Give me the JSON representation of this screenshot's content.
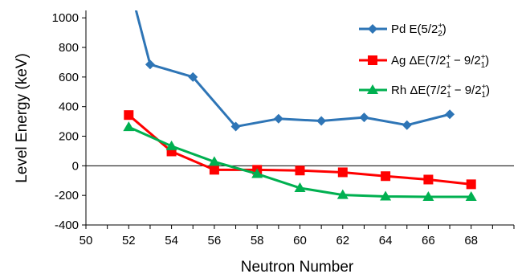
{
  "chart_data": {
    "type": "line",
    "title": "",
    "xlabel": "Neutron Number",
    "ylabel": "Level Energy (keV)",
    "xlim": [
      50,
      70
    ],
    "ylim": [
      -400,
      1050
    ],
    "xticks": [
      50,
      52,
      54,
      56,
      58,
      60,
      62,
      64,
      66,
      68
    ],
    "yticks": [
      -400,
      -200,
      0,
      200,
      400,
      600,
      800,
      1000
    ],
    "grid": false,
    "legend_position": "top-right",
    "series": [
      {
        "name": "Pd",
        "legend_label": {
          "element": "Pd",
          "expr": "E(5/2",
          "sup": "+",
          "sub": "2",
          "close": ")"
        },
        "color": "#2e75b6",
        "marker": "diamond",
        "x": [
          52,
          53,
          55,
          57,
          59,
          61,
          63,
          65,
          67
        ],
        "y": [
          1240,
          685,
          600,
          265,
          318,
          303,
          327,
          275,
          348
        ]
      },
      {
        "name": "Ag",
        "legend_label": {
          "element": "Ag",
          "expr": "ΔE(7/2",
          "sup1": "+",
          "sub1": "1",
          "mid": " − 9/2",
          "sup2": "+",
          "sub2": "1",
          "close": ")"
        },
        "color": "#ff0000",
        "marker": "square",
        "x": [
          52,
          54,
          56,
          58,
          60,
          62,
          64,
          66,
          68
        ],
        "y": [
          343,
          97,
          -27,
          -27,
          -32,
          -44,
          -70,
          -93,
          -125
        ]
      },
      {
        "name": "Rh",
        "legend_label": {
          "element": "Rh",
          "expr": "ΔE(7/2",
          "sup1": "+",
          "sub1": "1",
          "mid": " − 9/2",
          "sup2": "+",
          "sub2": "1",
          "close": ")"
        },
        "color": "#00b050",
        "marker": "triangle",
        "x": [
          52,
          54,
          56,
          58,
          60,
          62,
          64,
          66,
          68
        ],
        "y": [
          262,
          133,
          27,
          -55,
          -150,
          -197,
          -207,
          -210,
          -210
        ]
      }
    ]
  }
}
